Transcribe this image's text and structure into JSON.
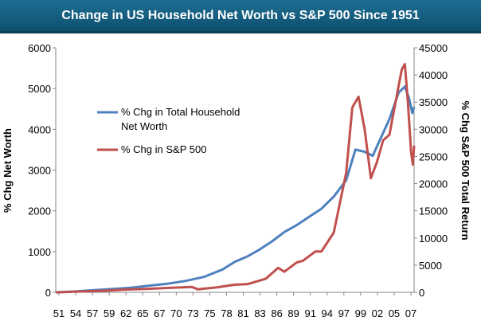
{
  "title": "Change in US Household Net Worth vs S&P 500 Since 1951",
  "chart_data": {
    "type": "line",
    "title": "Change in US Household Net Worth vs S&P 500 Since 1951",
    "xlabel": "",
    "ylabel_left": "% Chg Net Worth",
    "ylabel_right": "% Chg S&P 500 Total Return",
    "x_tick_labels": [
      "51",
      "54",
      "57",
      "59",
      "62",
      "65",
      "67",
      "70",
      "73",
      "75",
      "78",
      "81",
      "83",
      "86",
      "89",
      "91",
      "94",
      "97",
      "99",
      "02",
      "05",
      "07"
    ],
    "x_range": [
      1951,
      2009
    ],
    "ylim_left": [
      0,
      6000
    ],
    "ylim_right": [
      0,
      45000
    ],
    "y_ticks_left": [
      "0",
      "1000",
      "2000",
      "3000",
      "4000",
      "5000",
      "6000"
    ],
    "y_ticks_right": [
      "0",
      "5000",
      "10000",
      "15000",
      "20000",
      "25000",
      "30000",
      "35000",
      "40000",
      "45000"
    ],
    "grid": false,
    "legend_position": "upper-left",
    "series": [
      {
        "name": "% Chg in Total Household Net Worth",
        "legend_lines": [
          "% Chg in Total Household",
          "Net Worth"
        ],
        "axis": "left",
        "color": "#4f81bd",
        "points": [
          [
            1951,
            0
          ],
          [
            1954,
            20
          ],
          [
            1957,
            50
          ],
          [
            1960,
            80
          ],
          [
            1963,
            110
          ],
          [
            1966,
            160
          ],
          [
            1969,
            210
          ],
          [
            1972,
            280
          ],
          [
            1975,
            380
          ],
          [
            1978,
            560
          ],
          [
            1980,
            750
          ],
          [
            1982,
            880
          ],
          [
            1984,
            1050
          ],
          [
            1986,
            1250
          ],
          [
            1988,
            1480
          ],
          [
            1990,
            1650
          ],
          [
            1992,
            1850
          ],
          [
            1994,
            2050
          ],
          [
            1996,
            2350
          ],
          [
            1998,
            2750
          ],
          [
            1999.5,
            3500
          ],
          [
            2001,
            3450
          ],
          [
            2002.3,
            3350
          ],
          [
            2003.5,
            3750
          ],
          [
            2005,
            4250
          ],
          [
            2006.5,
            4900
          ],
          [
            2007.5,
            5050
          ],
          [
            2008.2,
            4750
          ],
          [
            2008.7,
            4400
          ],
          [
            2009,
            4550
          ]
        ]
      },
      {
        "name": "% Chg in S&P 500",
        "legend_lines": [
          "% Chg in S&P 500"
        ],
        "axis": "right",
        "color": "#c0504d",
        "points": [
          [
            1951,
            0
          ],
          [
            1955,
            150
          ],
          [
            1959,
            300
          ],
          [
            1962,
            500
          ],
          [
            1966,
            650
          ],
          [
            1969,
            800
          ],
          [
            1973,
            1000
          ],
          [
            1974,
            550
          ],
          [
            1977,
            900
          ],
          [
            1980,
            1400
          ],
          [
            1982,
            1500
          ],
          [
            1985,
            2500
          ],
          [
            1987,
            4500
          ],
          [
            1988,
            3800
          ],
          [
            1990,
            5500
          ],
          [
            1991,
            5800
          ],
          [
            1993,
            7500
          ],
          [
            1994,
            7500
          ],
          [
            1996,
            11000
          ],
          [
            1998,
            22000
          ],
          [
            1999,
            34000
          ],
          [
            2000,
            36000
          ],
          [
            2001,
            30000
          ],
          [
            2002,
            21000
          ],
          [
            2003,
            24000
          ],
          [
            2004,
            28000
          ],
          [
            2005,
            29000
          ],
          [
            2006,
            35000
          ],
          [
            2007,
            41000
          ],
          [
            2007.5,
            42000
          ],
          [
            2008,
            35000
          ],
          [
            2008.5,
            26000
          ],
          [
            2008.8,
            23500
          ],
          [
            2009,
            27000
          ]
        ]
      }
    ]
  }
}
